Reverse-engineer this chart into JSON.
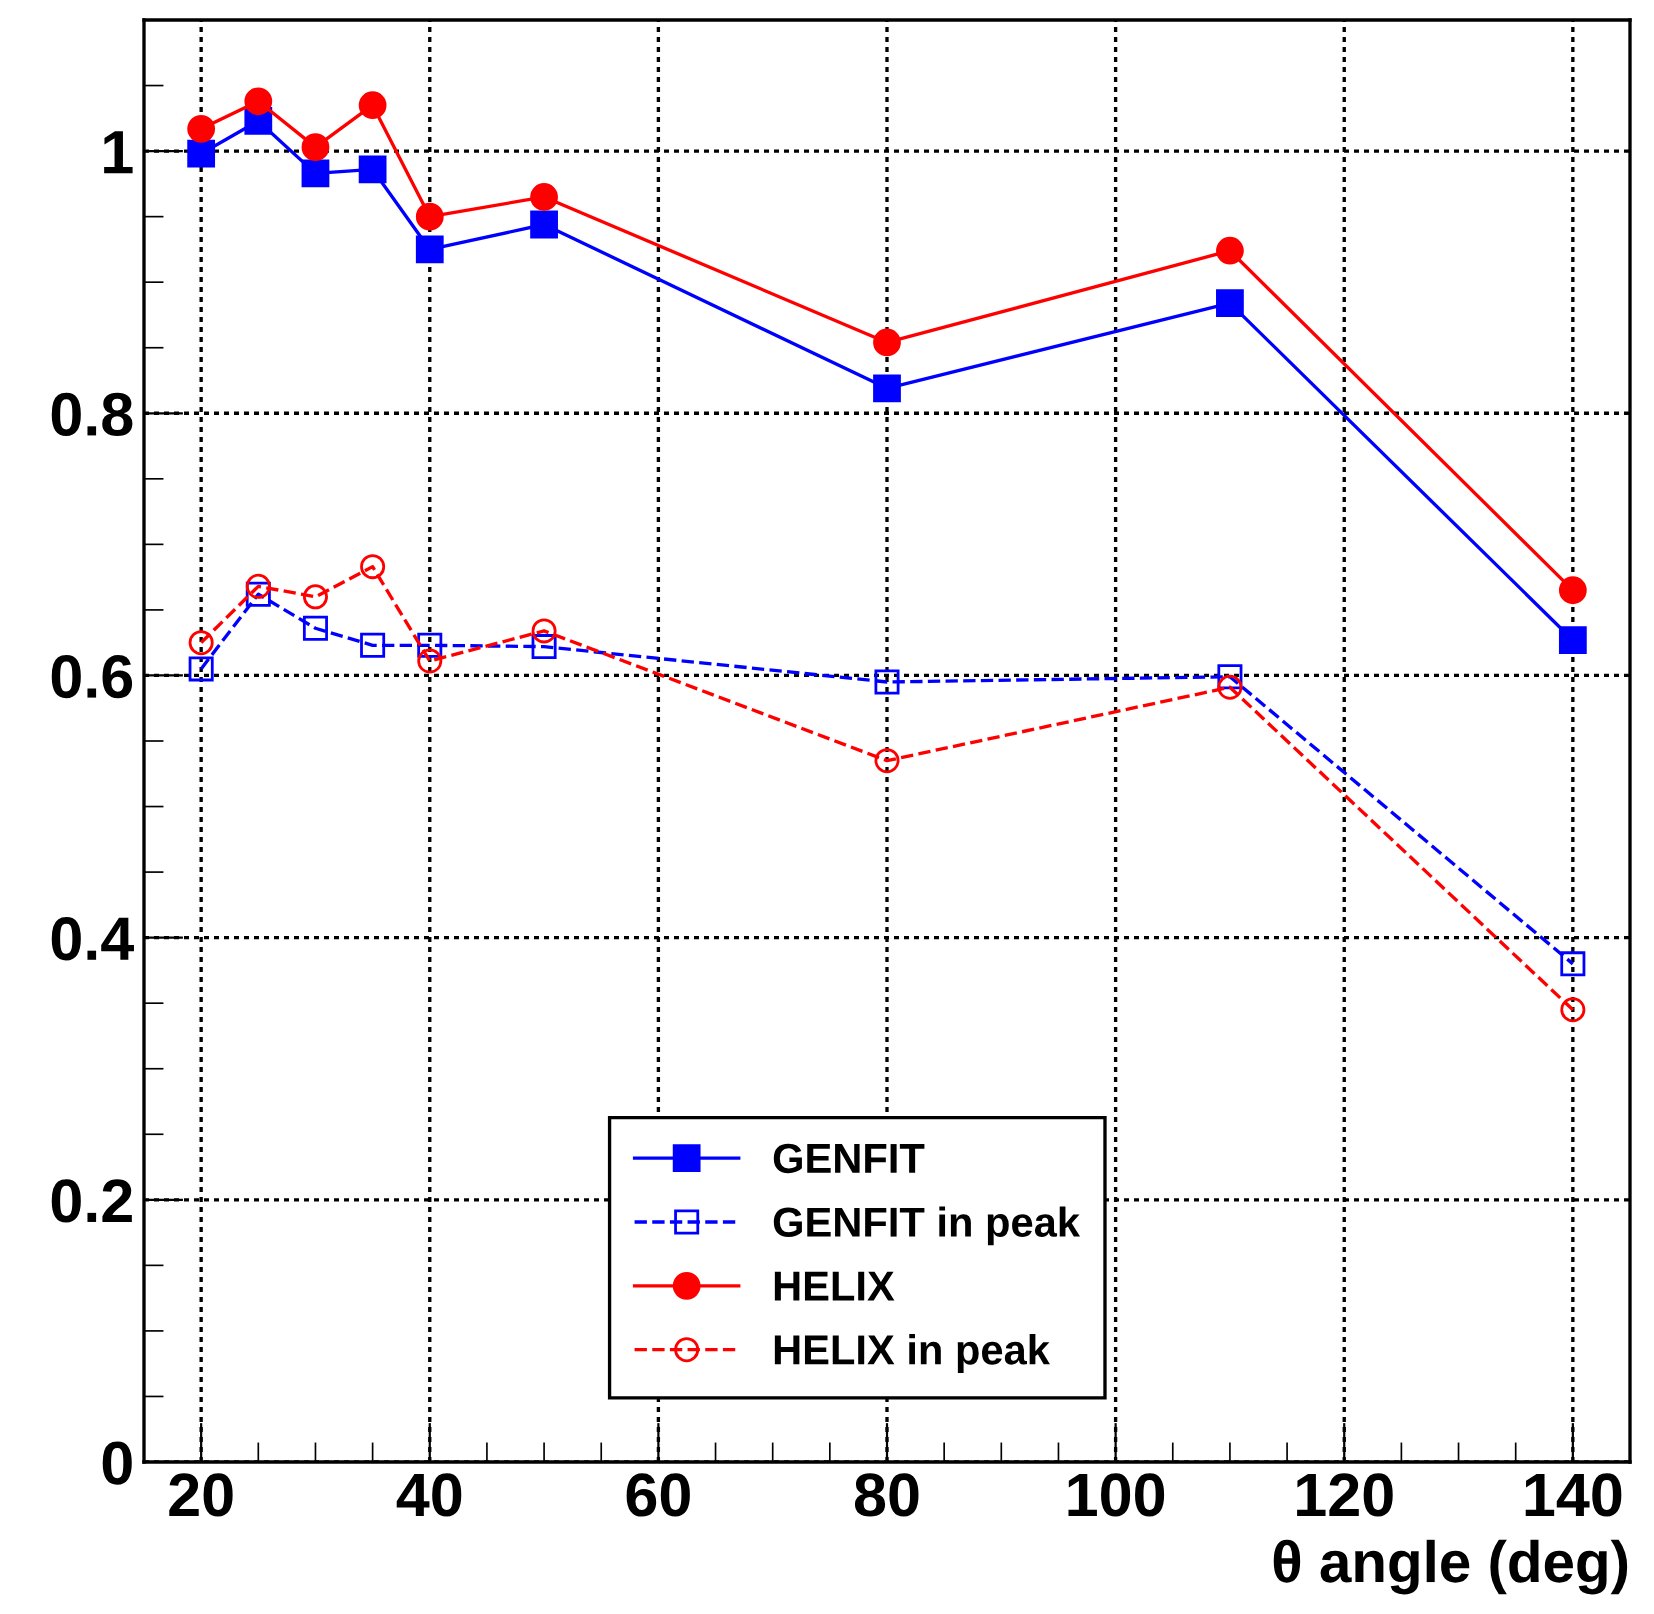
{
  "chart_data": {
    "type": "line",
    "xlabel": "θ angle (deg)",
    "x": [
      20,
      25,
      30,
      35,
      40,
      50,
      80,
      110,
      140
    ],
    "xlim": [
      15,
      145
    ],
    "xticks": [
      20,
      40,
      60,
      80,
      100,
      120,
      140
    ],
    "ylim": [
      0,
      1.1
    ],
    "yticks": [
      0,
      0.2,
      0.4,
      0.6,
      0.8,
      1
    ],
    "grid": true,
    "legend": "bottom",
    "series": [
      {
        "name": "GENFIT",
        "color": "#0000ff",
        "marker": "square",
        "line_style": "solid",
        "values": [
          0.998,
          1.023,
          0.983,
          0.986,
          0.925,
          0.944,
          0.819,
          0.884,
          0.627
        ]
      },
      {
        "name": "GENFIT in peak",
        "color": "#0000ff",
        "marker": "square",
        "line_style": "dashed",
        "values": [
          0.605,
          0.662,
          0.636,
          0.623,
          0.623,
          0.622,
          0.595,
          0.599,
          0.38
        ]
      },
      {
        "name": "HELIX",
        "color": "#ff0000",
        "marker": "circle",
        "line_style": "solid",
        "values": [
          1.017,
          1.038,
          1.003,
          1.035,
          0.95,
          0.965,
          0.854,
          0.924,
          0.665
        ]
      },
      {
        "name": "HELIX in peak",
        "color": "#ff0000",
        "marker": "circle",
        "line_style": "dashed",
        "values": [
          0.625,
          0.668,
          0.66,
          0.683,
          0.611,
          0.634,
          0.535,
          0.591,
          0.345
        ]
      }
    ]
  }
}
